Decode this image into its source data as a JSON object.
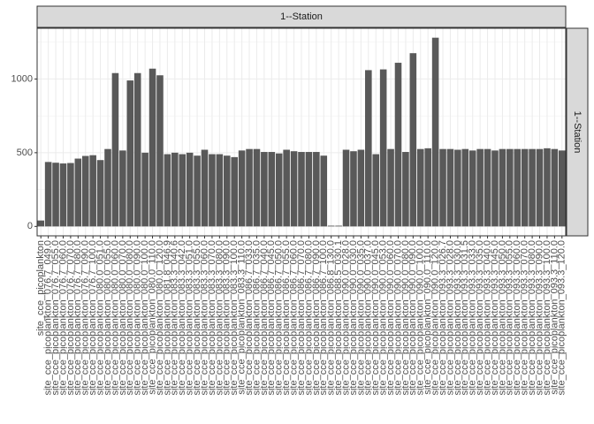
{
  "chart_data": {
    "type": "bar",
    "facet_label": "1--Station",
    "categories": [
      "site_cce_picoplankton",
      "site_cce_picoplankton_076.7_049.0",
      "site_cce_picoplankton_076.7_055.0",
      "site_cce_picoplankton_076.7_060.0",
      "site_cce_picoplankton_076.7_070.0",
      "site_cce_picoplankton_076.7_080.0",
      "site_cce_picoplankton_076.7_090.0",
      "site_cce_picoplankton_076.7_100.0",
      "site_cce_picoplankton_080.0_051.0",
      "site_cce_picoplankton_080.0_055.0",
      "site_cce_picoplankton_080.0_060.0",
      "site_cce_picoplankton_080.0_070.0",
      "site_cce_picoplankton_080.0_080.0",
      "site_cce_picoplankton_080.0_090.0",
      "site_cce_picoplankton_080.0_100.0",
      "site_cce_picoplankton_080.0_110.0",
      "site_cce_picoplankton_080.0_120.0",
      "site_cce_picoplankton_081.8_046.9",
      "site_cce_picoplankton_083.3_040.6",
      "site_cce_picoplankton_083.3_042.0",
      "site_cce_picoplankton_083.3_051.0",
      "site_cce_picoplankton_083.3_055.0",
      "site_cce_picoplankton_083.3_060.0",
      "site_cce_picoplankton_083.3_070.0",
      "site_cce_picoplankton_083.3_080.0",
      "site_cce_picoplankton_083.3_090.0",
      "site_cce_picoplankton_083.3_100.0",
      "site_cce_picoplankton_083.3_110.0",
      "site_cce_picoplankton_086.7_033.0",
      "site_cce_picoplankton_086.7_035.0",
      "site_cce_picoplankton_086.7_040.0",
      "site_cce_picoplankton_086.7_045.0",
      "site_cce_picoplankton_086.7_050.0",
      "site_cce_picoplankton_086.7_055.0",
      "site_cce_picoplankton_086.7_060.0",
      "site_cce_picoplankton_086.7_070.0",
      "site_cce_picoplankton_086.7_080.0",
      "site_cce_picoplankton_086.7_090.0",
      "site_cce_picoplankton_086.7_100.0",
      "site_cce_picoplankton_086.8_130.0",
      "site_cce_picoplankton_088.5_030.1",
      "site_cce_picoplankton_090.0_028.0",
      "site_cce_picoplankton_090.0_030.0",
      "site_cce_picoplankton_090.0_035.0",
      "site_cce_picoplankton_090.0_037.0",
      "site_cce_picoplankton_090.0_045.0",
      "site_cce_picoplankton_090.0_053.0",
      "site_cce_picoplankton_090.0_060.0",
      "site_cce_picoplankton_090.0_070.0",
      "site_cce_picoplankton_090.0_080.0",
      "site_cce_picoplankton_090.0_090.0",
      "site_cce_picoplankton_090.0_100.0",
      "site_cce_picoplankton_090.0_110.0",
      "site_cce_picoplankton_090.0_120.0",
      "site_cce_picoplankton_093.3_026.7",
      "site_cce_picoplankton_093.3_028.0",
      "site_cce_picoplankton_093.3_030.0",
      "site_cce_picoplankton_093.3_031.5",
      "site_cce_picoplankton_093.3_033.0",
      "site_cce_picoplankton_093.3_035.0",
      "site_cce_picoplankton_093.3_040.0",
      "site_cce_picoplankton_093.3_045.0",
      "site_cce_picoplankton_093.3_050.0",
      "site_cce_picoplankton_093.3_055.0",
      "site_cce_picoplankton_093.3_060.0",
      "site_cce_picoplankton_093.3_070.0",
      "site_cce_picoplankton_093.3_080.0",
      "site_cce_picoplankton_093.3_090.0",
      "site_cce_picoplankton_093.3_100.0",
      "site_cce_picoplankton_093.3_110.0",
      "site_cce_picoplankton_093.3_120.0"
    ],
    "values": [
      40,
      437,
      432,
      427,
      430,
      460,
      478,
      483,
      450,
      525,
      1040,
      515,
      990,
      1040,
      500,
      1070,
      1025,
      490,
      500,
      490,
      500,
      480,
      520,
      490,
      490,
      480,
      470,
      515,
      525,
      525,
      505,
      505,
      495,
      520,
      510,
      505,
      505,
      505,
      480,
      5,
      5,
      520,
      510,
      520,
      1060,
      490,
      1065,
      525,
      1110,
      505,
      1175,
      525,
      530,
      1280,
      525,
      525,
      520,
      525,
      515,
      525,
      525,
      515,
      525,
      525,
      525,
      525,
      525,
      525,
      530,
      525,
      515
    ],
    "color": "#595959",
    "ylim": [
      -64,
      1344
    ],
    "yticks": [
      0,
      500,
      1000
    ],
    "yminor": [
      250,
      750,
      1250
    ],
    "grid": true
  }
}
